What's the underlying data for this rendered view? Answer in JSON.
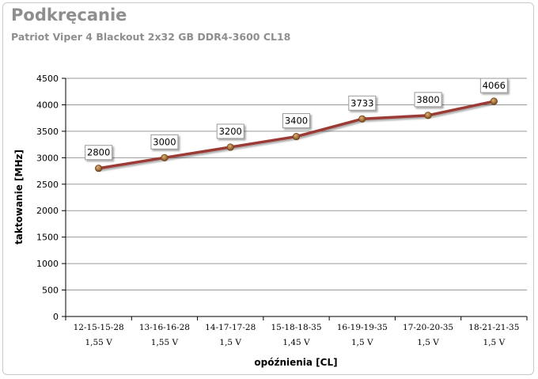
{
  "chart_data": {
    "type": "line",
    "title": "Podkręcanie",
    "subtitle": "Patriot Viper 4 Blackout 2x32 GB DDR4-3600 CL18",
    "xlabel": "opóźnienia [CL]",
    "ylabel": "taktowanie [MHz]",
    "ylim": [
      0,
      4500
    ],
    "yticks": [
      0,
      500,
      1000,
      1500,
      2000,
      2500,
      3000,
      3500,
      4000,
      4500
    ],
    "grid": true,
    "categories": [
      {
        "timing": "12-15-15-28",
        "voltage": "1,55 V"
      },
      {
        "timing": "13-16-16-28",
        "voltage": "1,55 V"
      },
      {
        "timing": "14-17-17-28",
        "voltage": "1,5 V"
      },
      {
        "timing": "15-18-18-35",
        "voltage": "1,45 V"
      },
      {
        "timing": "16-19-19-35",
        "voltage": "1,5 V"
      },
      {
        "timing": "17-20-20-35",
        "voltage": "1,5 V"
      },
      {
        "timing": "18-21-21-35",
        "voltage": "1,5 V"
      }
    ],
    "series": [
      {
        "values": [
          2800,
          3000,
          3200,
          3400,
          3733,
          3800,
          4066
        ],
        "color": "#9c3b36"
      }
    ],
    "marker_color": "#a0642e"
  }
}
